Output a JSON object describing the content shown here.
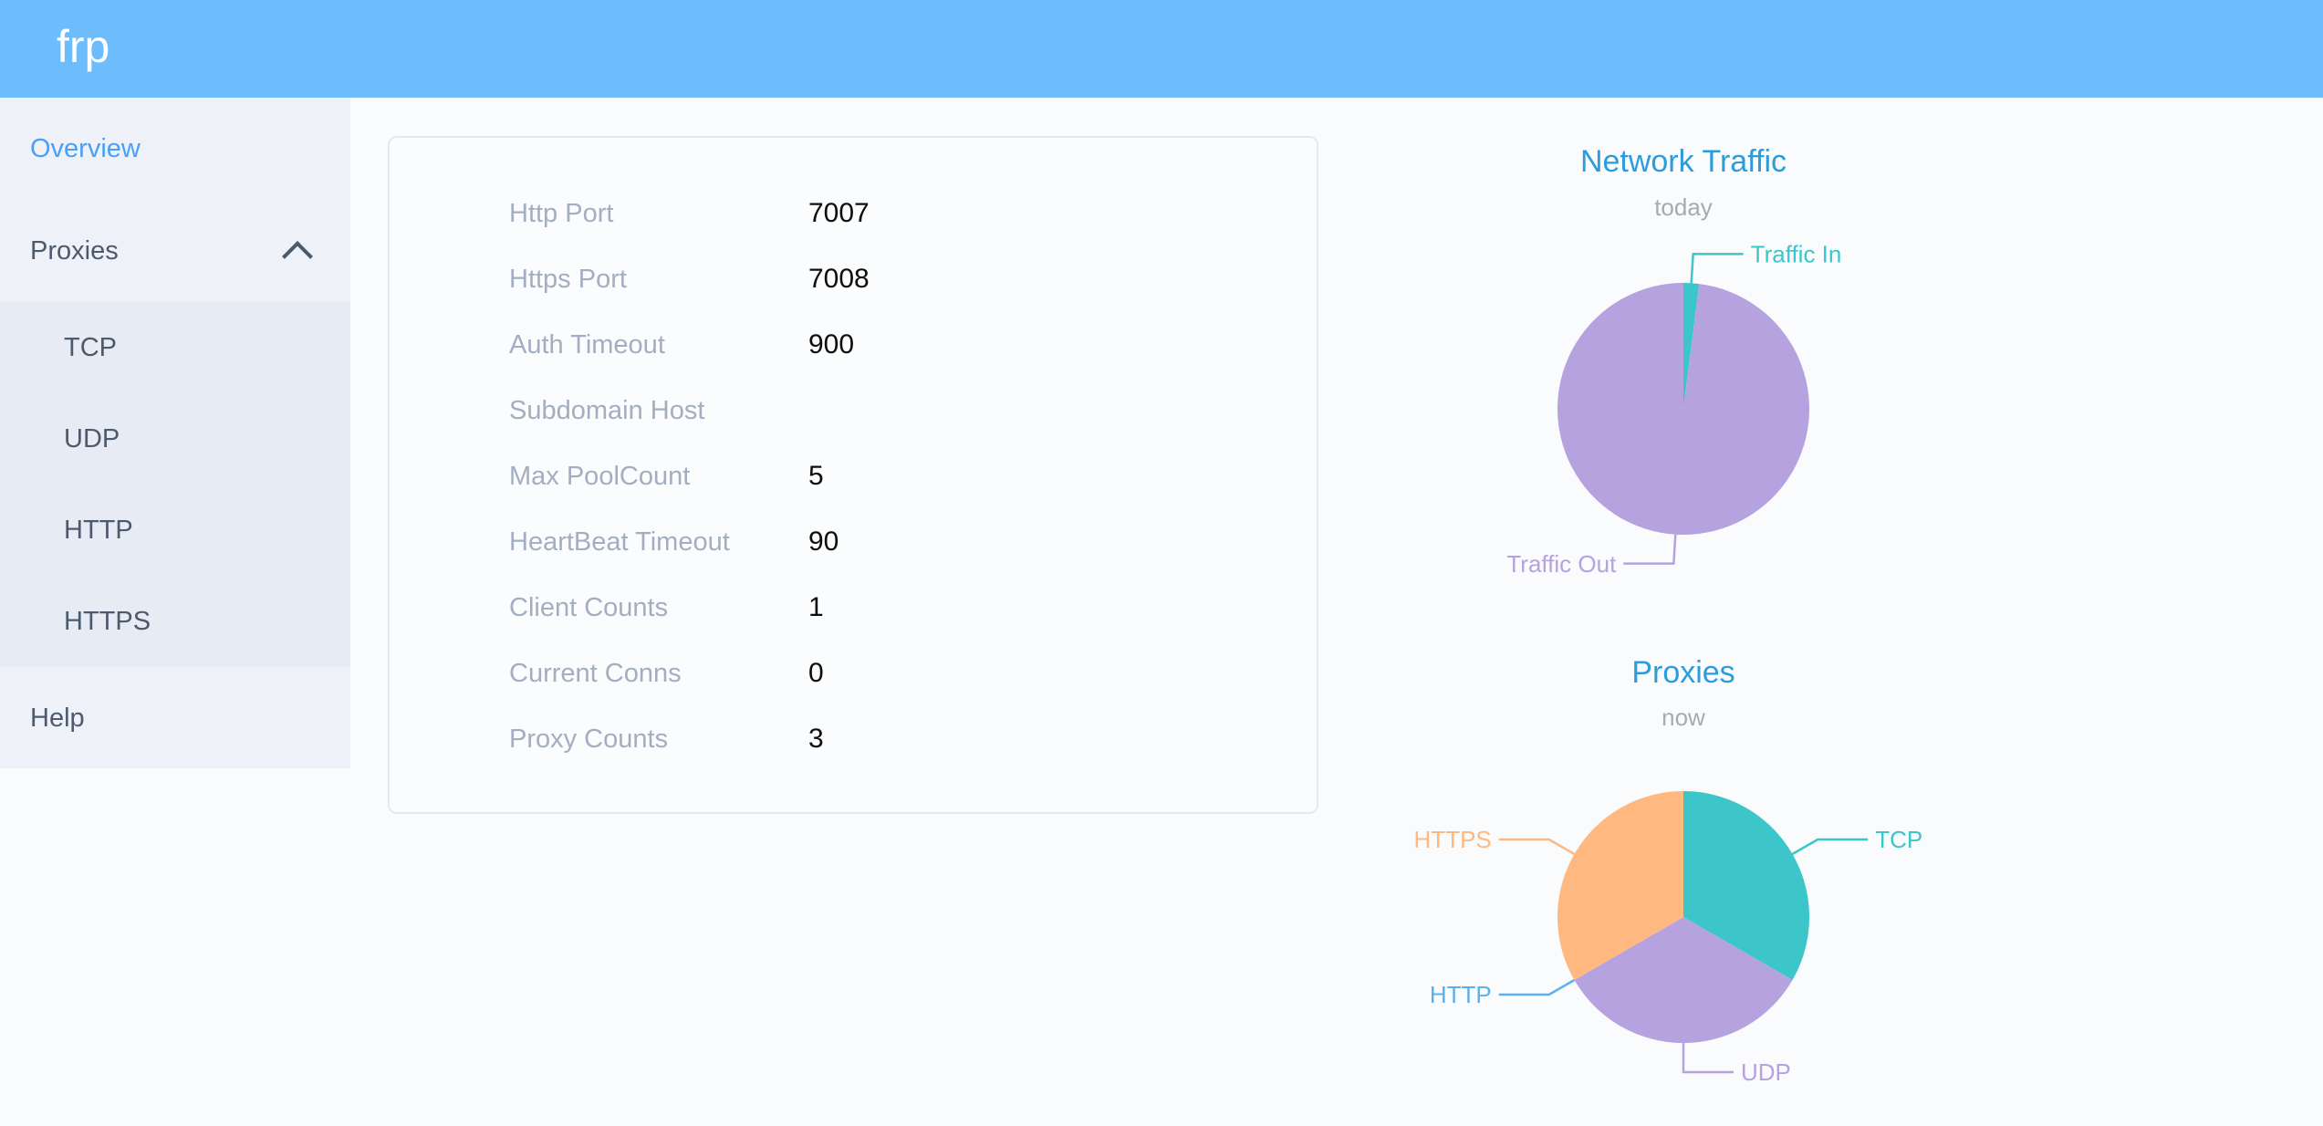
{
  "header": {
    "logo": "frp"
  },
  "sidebar": {
    "items": [
      {
        "label": "Overview",
        "active": true
      },
      {
        "label": "Proxies",
        "expanded": true,
        "children": [
          "TCP",
          "UDP",
          "HTTP",
          "HTTPS"
        ]
      },
      {
        "label": "Help"
      }
    ]
  },
  "overview_card": {
    "rows": [
      {
        "label": "Http Port",
        "value": "7007"
      },
      {
        "label": "Https Port",
        "value": "7008"
      },
      {
        "label": "Auth Timeout",
        "value": "900"
      },
      {
        "label": "Subdomain Host",
        "value": ""
      },
      {
        "label": "Max PoolCount",
        "value": "5"
      },
      {
        "label": "HeartBeat Timeout",
        "value": "90"
      },
      {
        "label": "Client Counts",
        "value": "1"
      },
      {
        "label": "Current Conns",
        "value": "0"
      },
      {
        "label": "Proxy Counts",
        "value": "3"
      }
    ]
  },
  "chart_data": [
    {
      "type": "pie",
      "title": "Network Traffic",
      "subtitle": "today",
      "labels": [
        "Traffic In",
        "Traffic Out"
      ],
      "values": [
        2,
        98
      ],
      "unit": "percent, estimated from pie proportions",
      "colors": [
        "#3cc6c9",
        "#b6a2de"
      ],
      "legend_position": "callout-labels"
    },
    {
      "type": "pie",
      "title": "Proxies",
      "subtitle": "now",
      "labels": [
        "TCP",
        "UDP",
        "HTTP",
        "HTTPS"
      ],
      "values": [
        1,
        1,
        0,
        1
      ],
      "unit": "proxy count",
      "colors": [
        "#3cc6c9",
        "#b6a2de",
        "#5ab1ef",
        "#ffb980"
      ],
      "legend_position": "callout-labels"
    }
  ]
}
